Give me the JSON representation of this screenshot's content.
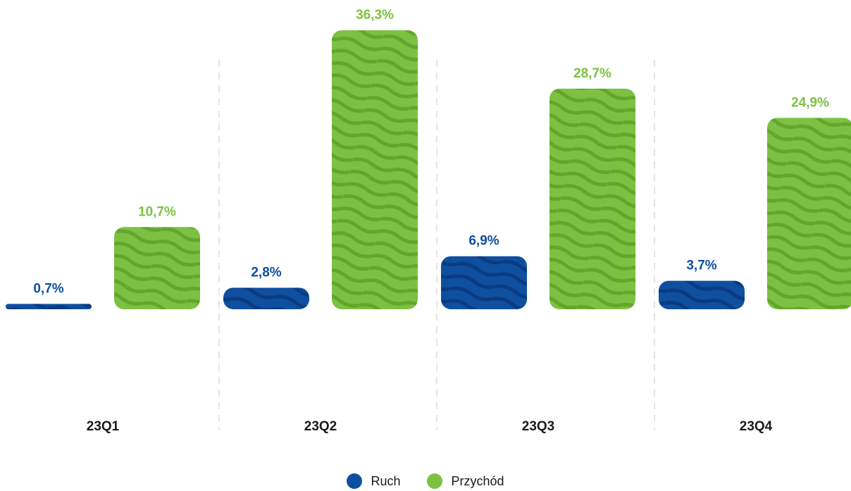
{
  "chart_data": {
    "type": "bar",
    "categories": [
      "23Q1",
      "23Q2",
      "23Q3",
      "23Q4"
    ],
    "series": [
      {
        "name": "Ruch",
        "color": "#0f4fa0",
        "values": [
          0.7,
          2.8,
          6.9,
          3.7
        ],
        "labels": [
          "0,7%",
          "2,8%",
          "6,9%",
          "3,7%"
        ]
      },
      {
        "name": "Przychód",
        "color": "#7cc142",
        "values": [
          10.7,
          36.3,
          28.7,
          24.9
        ],
        "labels": [
          "10,7%",
          "36,3%",
          "28,7%",
          "24,9%"
        ]
      }
    ],
    "ylim": [
      0,
      36.3
    ],
    "grid": false,
    "legend": "bottom-center"
  },
  "legend": [
    {
      "label": "Ruch",
      "color": "#0f4fa0"
    },
    {
      "label": "Przychód",
      "color": "#7cc142"
    }
  ]
}
